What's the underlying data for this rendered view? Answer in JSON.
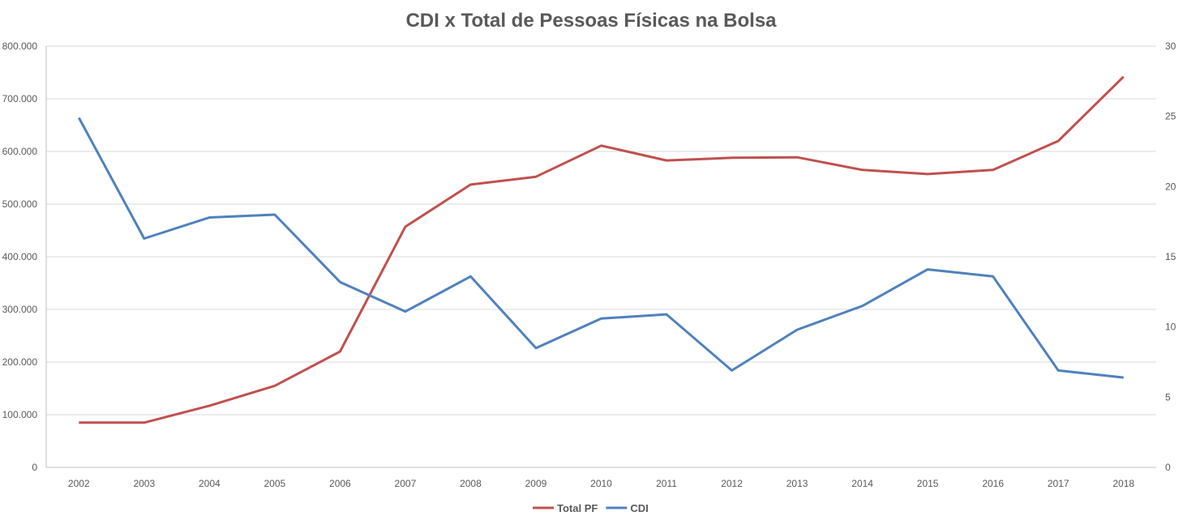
{
  "chart_data": {
    "type": "line",
    "title": "CDI x Total de Pessoas Físicas na Bolsa",
    "categories": [
      "2002",
      "2003",
      "2004",
      "2005",
      "2006",
      "2007",
      "2008",
      "2009",
      "2010",
      "2011",
      "2012",
      "2013",
      "2014",
      "2015",
      "2016",
      "2017",
      "2018"
    ],
    "series": [
      {
        "name": "Total PF",
        "axis": "left",
        "color": "#C0504D",
        "values": [
          85000,
          85000,
          117000,
          155000,
          220000,
          457000,
          537000,
          552000,
          611000,
          583000,
          588000,
          589000,
          565000,
          557000,
          565000,
          620000,
          742000
        ]
      },
      {
        "name": "CDI",
        "axis": "right",
        "color": "#4F81BD",
        "values": [
          24.9,
          16.3,
          17.8,
          18.0,
          13.2,
          11.1,
          13.6,
          8.5,
          10.6,
          10.9,
          6.9,
          9.8,
          11.5,
          14.1,
          13.6,
          6.9,
          6.4
        ]
      }
    ],
    "left_axis": {
      "ylim": [
        0,
        800000
      ],
      "tick_labels": [
        "0",
        "100.000",
        "200.000",
        "300.000",
        "400.000",
        "500.000",
        "600.000",
        "700.000",
        "800.000"
      ]
    },
    "right_axis": {
      "ylim": [
        0,
        30
      ],
      "tick_labels": [
        "0",
        "5",
        "10",
        "15",
        "20",
        "25",
        "30"
      ]
    },
    "grid": true,
    "legend": {
      "position": "bottom",
      "entries": [
        "Total PF",
        "CDI"
      ]
    }
  }
}
